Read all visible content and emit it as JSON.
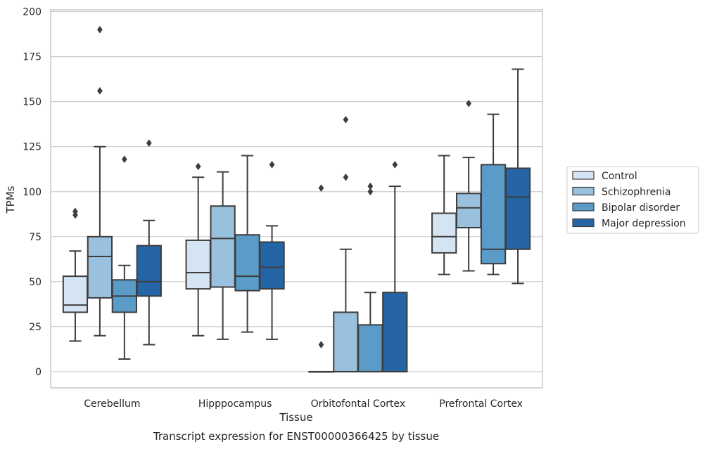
{
  "chart_data": {
    "type": "box",
    "xlabel": "Tissue",
    "ylabel": "TPMs",
    "caption": "Transcript expression for ENST00000366425 by tissue",
    "ylim": [
      -9,
      201
    ],
    "yticks": [
      0,
      25,
      50,
      75,
      100,
      125,
      150,
      175,
      200
    ],
    "grid": true,
    "legend_position": "right",
    "categories": [
      "Cerebellum",
      "Hipppocampus",
      "Orbitofontal Cortex",
      "Prefrontal Cortex"
    ],
    "series": [
      {
        "name": "Control",
        "color": "#d5e4f3",
        "boxes": [
          {
            "whislo": 17,
            "q1": 33,
            "med": 37,
            "q3": 53,
            "whishi": 67,
            "fliers": [
              87,
              89
            ]
          },
          {
            "whislo": 20,
            "q1": 46,
            "med": 55,
            "q3": 73,
            "whishi": 108,
            "fliers": [
              114
            ]
          },
          {
            "whislo": 0,
            "q1": 0,
            "med": 0,
            "q3": 0,
            "whishi": 0,
            "fliers": [
              15,
              102
            ]
          },
          {
            "whislo": 54,
            "q1": 66,
            "med": 75,
            "q3": 88,
            "whishi": 120,
            "fliers": []
          }
        ]
      },
      {
        "name": "Schizophrenia",
        "color": "#99c0dc",
        "boxes": [
          {
            "whislo": 20,
            "q1": 41,
            "med": 64,
            "q3": 75,
            "whishi": 125,
            "fliers": [
              156,
              190
            ]
          },
          {
            "whislo": 18,
            "q1": 47,
            "med": 74,
            "q3": 92,
            "whishi": 111,
            "fliers": []
          },
          {
            "whislo": 0,
            "q1": 0,
            "med": 0,
            "q3": 33,
            "whishi": 68,
            "fliers": [
              108,
              140
            ]
          },
          {
            "whislo": 56,
            "q1": 80,
            "med": 91,
            "q3": 99,
            "whishi": 119,
            "fliers": [
              149
            ]
          }
        ]
      },
      {
        "name": "Bipolar disorder",
        "color": "#5b9bc8",
        "boxes": [
          {
            "whislo": 7,
            "q1": 33,
            "med": 42,
            "q3": 51,
            "whishi": 59,
            "fliers": [
              118
            ]
          },
          {
            "whislo": 22,
            "q1": 45,
            "med": 53,
            "q3": 76,
            "whishi": 120,
            "fliers": []
          },
          {
            "whislo": 0,
            "q1": 0,
            "med": 0,
            "q3": 26,
            "whishi": 44,
            "fliers": [
              100,
              103
            ]
          },
          {
            "whislo": 54,
            "q1": 60,
            "med": 68,
            "q3": 115,
            "whishi": 143,
            "fliers": []
          }
        ]
      },
      {
        "name": "Major depression",
        "color": "#2565a6",
        "boxes": [
          {
            "whislo": 15,
            "q1": 42,
            "med": 50,
            "q3": 70,
            "whishi": 84,
            "fliers": [
              127
            ]
          },
          {
            "whislo": 18,
            "q1": 46,
            "med": 58,
            "q3": 72,
            "whishi": 81,
            "fliers": [
              115
            ]
          },
          {
            "whislo": 0,
            "q1": 0,
            "med": 0,
            "q3": 44,
            "whishi": 103,
            "fliers": [
              115
            ]
          },
          {
            "whislo": 49,
            "q1": 68,
            "med": 97,
            "q3": 113,
            "whishi": 168,
            "fliers": []
          }
        ]
      }
    ]
  }
}
